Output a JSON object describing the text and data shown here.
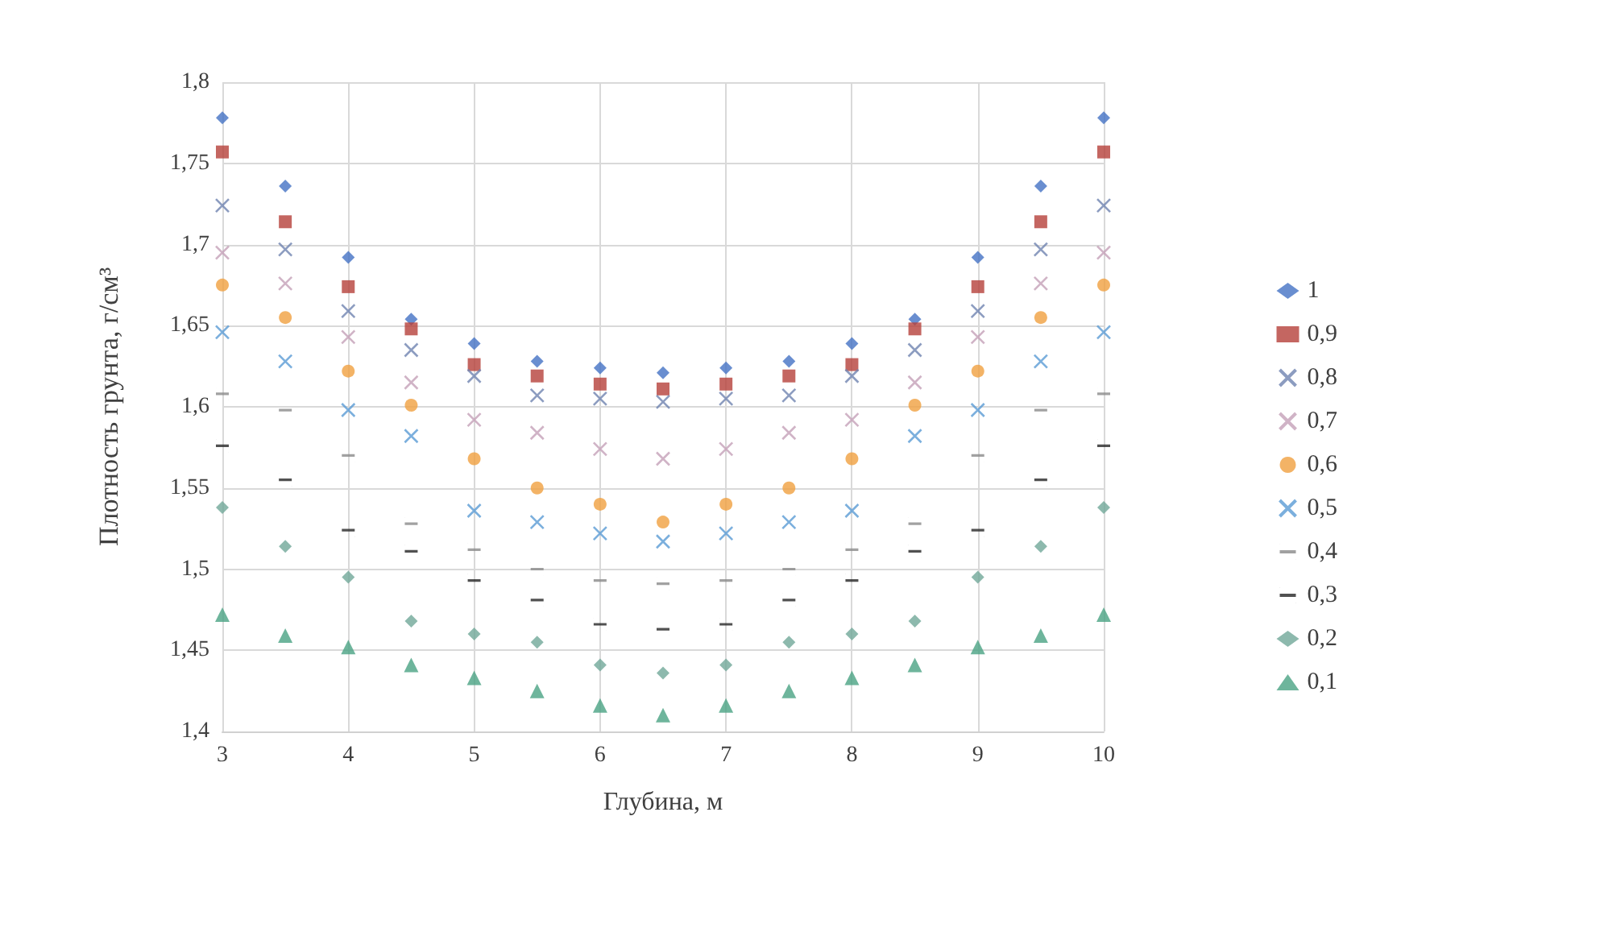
{
  "chart_data": {
    "type": "scatter",
    "xlabel": "Глубина, м",
    "ylabel": "Плотность грунта, г/см³",
    "x": [
      3,
      3.5,
      4,
      4.5,
      5,
      5.5,
      6,
      6.5,
      7,
      7.5,
      8,
      8.5,
      9,
      9.5,
      10
    ],
    "xlim": [
      3,
      10
    ],
    "xticks": [
      3,
      4,
      5,
      6,
      7,
      8,
      9,
      10
    ],
    "ylim": [
      1.4,
      1.8
    ],
    "yticks": [
      {
        "value": 1.4,
        "label": "1,4"
      },
      {
        "value": 1.45,
        "label": "1,45"
      },
      {
        "value": 1.5,
        "label": "1,5"
      },
      {
        "value": 1.55,
        "label": "1,55"
      },
      {
        "value": 1.6,
        "label": "1,6"
      },
      {
        "value": 1.65,
        "label": "1,65"
      },
      {
        "value": 1.7,
        "label": "1,7"
      },
      {
        "value": 1.75,
        "label": "1,75"
      },
      {
        "value": 1.8,
        "label": "1,8"
      }
    ],
    "grid": true,
    "legend": "right",
    "series": [
      {
        "name": "1",
        "color": "#4472c4",
        "marker": "diamond",
        "values": [
          1.778,
          1.736,
          1.692,
          1.654,
          1.639,
          1.628,
          1.624,
          1.621,
          1.624,
          1.628,
          1.639,
          1.654,
          1.692,
          1.736,
          1.778
        ]
      },
      {
        "name": "0,9",
        "color": "#b5403a",
        "marker": "square",
        "values": [
          1.757,
          1.714,
          1.674,
          1.648,
          1.626,
          1.619,
          1.614,
          1.611,
          1.614,
          1.619,
          1.626,
          1.648,
          1.674,
          1.714,
          1.757
        ]
      },
      {
        "name": "0,8",
        "color": "#6f83b0",
        "marker": "cross",
        "values": [
          1.724,
          1.697,
          1.659,
          1.635,
          1.619,
          1.607,
          1.605,
          1.603,
          1.605,
          1.607,
          1.619,
          1.635,
          1.659,
          1.697,
          1.724
        ]
      },
      {
        "name": "0,7",
        "color": "#c4a0b8",
        "marker": "cross",
        "values": [
          1.695,
          1.676,
          1.643,
          1.615,
          1.592,
          1.584,
          1.574,
          1.568,
          1.574,
          1.584,
          1.592,
          1.615,
          1.643,
          1.676,
          1.695
        ]
      },
      {
        "name": "0,6",
        "color": "#f0a040",
        "marker": "circle",
        "values": [
          1.675,
          1.655,
          1.622,
          1.601,
          1.568,
          1.55,
          1.54,
          1.529,
          1.54,
          1.55,
          1.568,
          1.601,
          1.622,
          1.655,
          1.675
        ]
      },
      {
        "name": "0,5",
        "color": "#5a9bd5",
        "marker": "cross",
        "values": [
          1.646,
          1.628,
          1.598,
          1.582,
          1.536,
          1.529,
          1.522,
          1.517,
          1.522,
          1.529,
          1.536,
          1.582,
          1.598,
          1.628,
          1.646
        ]
      },
      {
        "name": "0,4",
        "color": "#8a8a8a",
        "values": [
          1.608,
          1.598,
          1.57,
          1.528,
          1.512,
          1.5,
          1.493,
          1.491,
          1.493,
          1.5,
          1.512,
          1.528,
          1.57,
          1.598,
          1.608
        ]
      },
      {
        "name": "0,3",
        "color": "#262626",
        "values": [
          1.576,
          1.555,
          1.524,
          1.511,
          1.493,
          1.481,
          1.466,
          1.463,
          1.466,
          1.481,
          1.493,
          1.511,
          1.524,
          1.555,
          1.576
        ]
      },
      {
        "name": "0,2",
        "color": "#70a898",
        "marker": "diamond",
        "values": [
          1.538,
          1.514,
          1.495,
          1.468,
          1.46,
          1.455,
          1.441,
          1.436,
          1.441,
          1.455,
          1.46,
          1.468,
          1.495,
          1.514,
          1.538
        ]
      },
      {
        "name": "0,1",
        "color": "#4aa383",
        "marker": "triangle",
        "values": [
          1.472,
          1.459,
          1.452,
          1.441,
          1.433,
          1.425,
          1.416,
          1.41,
          1.416,
          1.425,
          1.433,
          1.441,
          1.452,
          1.459,
          1.472
        ]
      }
    ]
  }
}
